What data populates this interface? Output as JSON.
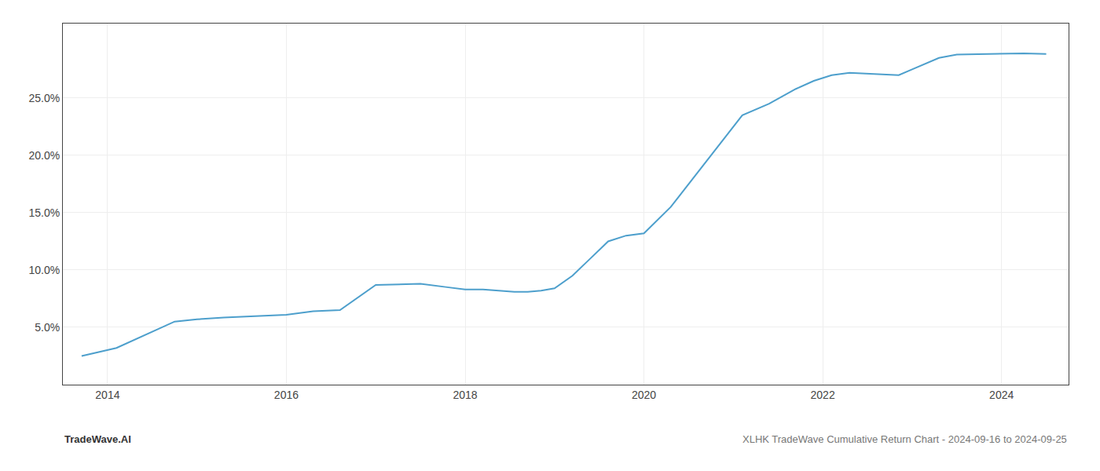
{
  "chart_data": {
    "type": "line",
    "x": [
      2013.71,
      2014.0,
      2014.1,
      2014.75,
      2015.0,
      2015.3,
      2015.7,
      2016.0,
      2016.3,
      2016.6,
      2017.0,
      2017.3,
      2017.5,
      2017.8,
      2018.0,
      2018.2,
      2018.4,
      2018.55,
      2018.7,
      2018.85,
      2019.0,
      2019.2,
      2019.4,
      2019.6,
      2019.8,
      2020.0,
      2020.3,
      2020.6,
      2020.85,
      2021.1,
      2021.4,
      2021.7,
      2021.9,
      2022.1,
      2022.3,
      2022.6,
      2022.85,
      2023.0,
      2023.3,
      2023.5,
      2023.75,
      2024.0,
      2024.25,
      2024.5
    ],
    "values": [
      2.5,
      3.0,
      3.2,
      5.5,
      5.7,
      5.85,
      6.0,
      6.1,
      6.4,
      6.5,
      8.7,
      8.75,
      8.8,
      8.5,
      8.3,
      8.3,
      8.2,
      8.1,
      8.1,
      8.2,
      8.4,
      9.5,
      11.0,
      12.5,
      13.0,
      13.2,
      15.5,
      18.5,
      21.0,
      23.5,
      24.5,
      25.8,
      26.5,
      27.0,
      27.2,
      27.1,
      27.0,
      27.5,
      28.5,
      28.8,
      28.85,
      28.9,
      28.9,
      28.85
    ],
    "color": "#4d9fcc",
    "xlim": [
      2013.5,
      2024.75
    ],
    "ylim": [
      0.0,
      31.5
    ],
    "xticks": [
      2014,
      2016,
      2018,
      2020,
      2022,
      2024
    ],
    "yticks": [
      {
        "value": 5.0,
        "label": "5.0%"
      },
      {
        "value": 10.0,
        "label": "10.0%"
      },
      {
        "value": 15.0,
        "label": "15.0%"
      },
      {
        "value": 20.0,
        "label": "20.0%"
      },
      {
        "value": 25.0,
        "label": "25.0%"
      }
    ],
    "grid": true,
    "annotations": [
      "TradeWave.AI",
      "XLHK TradeWave Cumulative Return Chart - 2024-09-16 to 2024-09-25"
    ]
  }
}
